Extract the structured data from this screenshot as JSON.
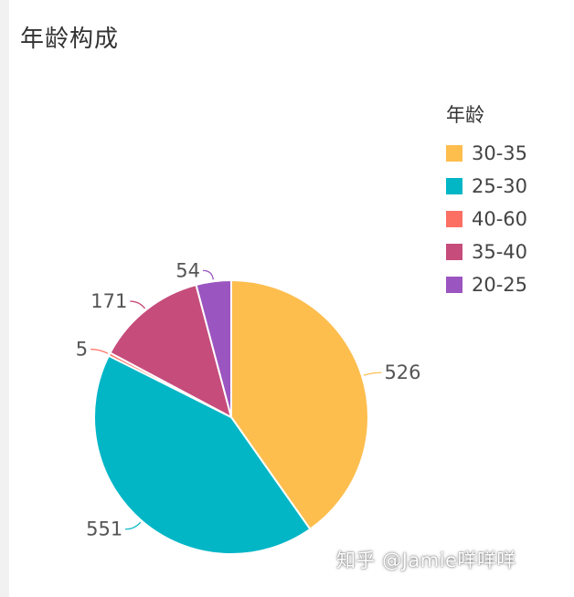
{
  "chart_data": {
    "type": "pie",
    "title": "年龄构成",
    "legend_title": "年龄",
    "legend_position": "right",
    "categories": [
      "30-35",
      "25-30",
      "40-60",
      "35-40",
      "20-25"
    ],
    "values": [
      526,
      551,
      5,
      171,
      54
    ],
    "colors": [
      "#FDBE4E",
      "#02B6C6",
      "#FC7064",
      "#C64C7B",
      "#9B55C0"
    ]
  },
  "watermark": "知乎 @Jamie咩咩咩"
}
